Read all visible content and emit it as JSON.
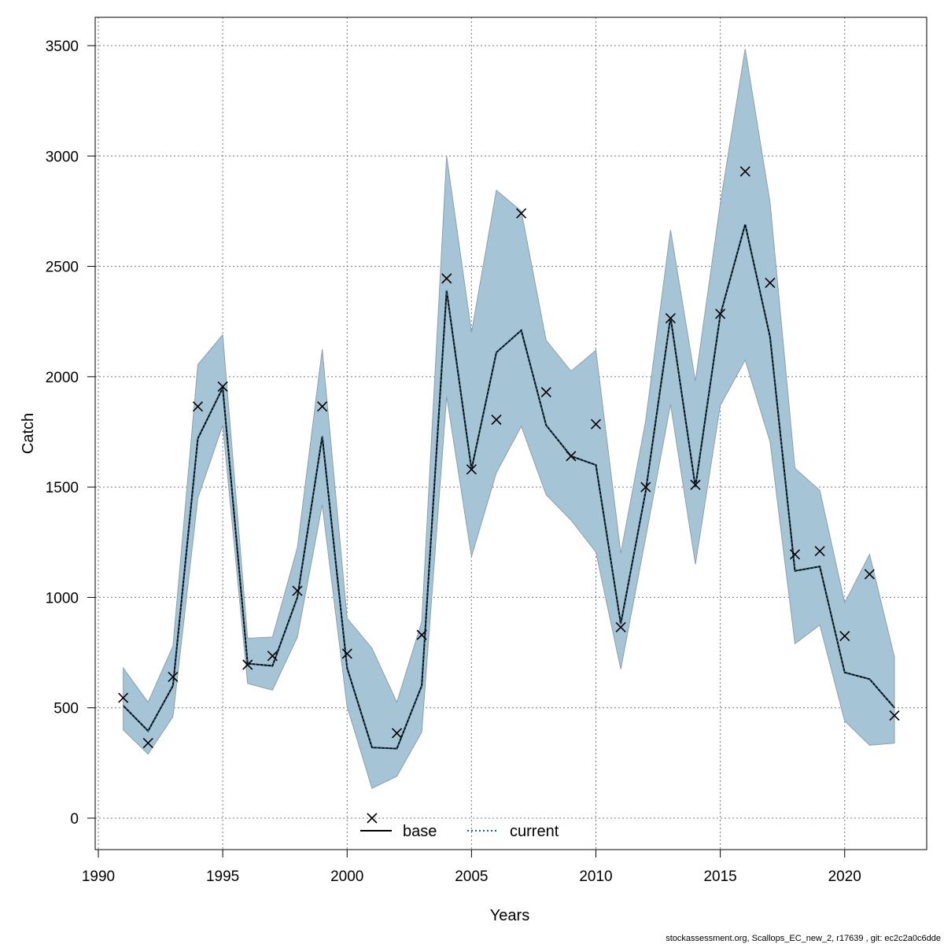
{
  "chart_data": {
    "type": "line",
    "xlabel": "Years",
    "ylabel": "Catch",
    "xlim": [
      1990,
      2022
    ],
    "ylim": [
      0,
      3500
    ],
    "xticks": [
      1990,
      1995,
      2000,
      2005,
      2010,
      2015,
      2020
    ],
    "yticks": [
      0,
      500,
      1000,
      1500,
      2000,
      2500,
      3000,
      3500
    ],
    "grid": true,
    "legend_position": "bottom-center",
    "colors": {
      "band": "#a5c5d6",
      "current": "#1f5e7a",
      "base": "#000000",
      "points": "#000000"
    },
    "x": [
      1991,
      1992,
      1993,
      1994,
      1995,
      1996,
      1997,
      1998,
      1999,
      2000,
      2001,
      2002,
      2003,
      2004,
      2005,
      2006,
      2007,
      2008,
      2009,
      2010,
      2011,
      2012,
      2013,
      2014,
      2015,
      2016,
      2017,
      2018,
      2019,
      2020,
      2021,
      2022
    ],
    "observed": [
      545,
      340,
      640,
      1865,
      1955,
      695,
      735,
      1030,
      1865,
      745,
      0,
      385,
      830,
      2445,
      1580,
      1805,
      2740,
      1930,
      1640,
      1785,
      865,
      1500,
      2265,
      1510,
      2285,
      2930,
      2425,
      1195,
      1210,
      825,
      1105,
      465
    ],
    "band_upper": [
      680,
      525,
      780,
      2055,
      2190,
      815,
      820,
      1225,
      2125,
      905,
      770,
      525,
      890,
      3000,
      2200,
      2845,
      2750,
      2165,
      2025,
      2120,
      1200,
      1800,
      2665,
      1980,
      2785,
      3485,
      2790,
      1585,
      1485,
      975,
      1195,
      730
    ],
    "band_lower": [
      400,
      290,
      460,
      1450,
      1780,
      610,
      580,
      820,
      1420,
      505,
      135,
      190,
      390,
      1910,
      1185,
      1565,
      1775,
      1465,
      1350,
      1205,
      675,
      1270,
      1875,
      1150,
      1870,
      2075,
      1705,
      790,
      875,
      440,
      330,
      340
    ],
    "series": [
      {
        "name": "base",
        "values": [
          510,
          395,
          600,
          1720,
          1950,
          700,
          690,
          1000,
          1730,
          680,
          320,
          315,
          600,
          2390,
          1580,
          2110,
          2210,
          1780,
          1640,
          1600,
          880,
          1480,
          2270,
          1500,
          2280,
          2690,
          2180,
          1120,
          1140,
          660,
          630,
          500
        ]
      },
      {
        "name": "current",
        "values": [
          510,
          395,
          600,
          1720,
          1950,
          700,
          690,
          1000,
          1730,
          680,
          320,
          315,
          600,
          2390,
          1580,
          2110,
          2210,
          1780,
          1640,
          1600,
          880,
          1480,
          2270,
          1500,
          2280,
          2690,
          2180,
          1120,
          1140,
          660,
          630,
          500
        ]
      }
    ],
    "legend": [
      "base",
      "current"
    ]
  },
  "footer": "stockassessment.org, Scallops_EC_new_2, r17639 , git: ec2c2a0c6dde"
}
